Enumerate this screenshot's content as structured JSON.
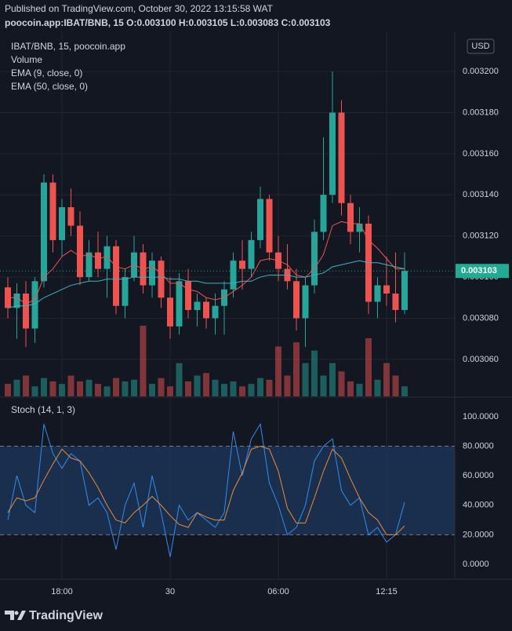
{
  "header": {
    "published": "Published on TradingView.com, October 30, 2022 13:15:58 WAT",
    "symbol_line": "poocoin.app:IBAT/BNB, 15 O:0.003100 H:0.003105 L:0.003083 C:0.003103"
  },
  "chart_data": [
    {
      "type": "candlestick",
      "title": "IBAT/BNB, 15, poocoin.app",
      "currency": "USD",
      "up_color": "#26a69a",
      "down_color": "#ef5350",
      "grid": true,
      "categories": [
        null,
        null,
        null,
        null,
        null,
        null,
        "18:00",
        null,
        null,
        null,
        null,
        null,
        null,
        null,
        null,
        null,
        null,
        null,
        "30",
        null,
        null,
        null,
        null,
        null,
        null,
        null,
        null,
        null,
        null,
        null,
        "06:00",
        null,
        null,
        null,
        null,
        null,
        null,
        null,
        null,
        null,
        null,
        null,
        "12:15",
        null,
        null
      ],
      "ohlc": [
        [
          0.003095,
          0.0031,
          0.00308,
          0.003085
        ],
        [
          0.003085,
          0.003097,
          0.00307,
          0.003092
        ],
        [
          0.003092,
          0.003098,
          0.003066,
          0.003075
        ],
        [
          0.003075,
          0.0031,
          0.003068,
          0.003098
        ],
        [
          0.003098,
          0.00315,
          0.003095,
          0.003146
        ],
        [
          0.003146,
          0.00315,
          0.003112,
          0.003118
        ],
        [
          0.003118,
          0.003138,
          0.00311,
          0.003134
        ],
        [
          0.003134,
          0.003143,
          0.00312,
          0.003125
        ],
        [
          0.003125,
          0.003132,
          0.003096,
          0.0031
        ],
        [
          0.0031,
          0.003118,
          0.003098,
          0.003112
        ],
        [
          0.003112,
          0.003122,
          0.0031,
          0.003104
        ],
        [
          0.003104,
          0.00312,
          0.00309,
          0.003115
        ],
        [
          0.003115,
          0.003118,
          0.003082,
          0.003086
        ],
        [
          0.003086,
          0.003104,
          0.00308,
          0.0031
        ],
        [
          0.0031,
          0.00312,
          0.003098,
          0.003112
        ],
        [
          0.003112,
          0.003116,
          0.003092,
          0.003096
        ],
        [
          0.003096,
          0.003112,
          0.00309,
          0.003108
        ],
        [
          0.003108,
          0.00311,
          0.003085,
          0.00309
        ],
        [
          0.00309,
          0.0031,
          0.00307,
          0.003076
        ],
        [
          0.003076,
          0.003102,
          0.003072,
          0.003098
        ],
        [
          0.003098,
          0.003104,
          0.00308,
          0.003084
        ],
        [
          0.003084,
          0.003092,
          0.003076,
          0.003088
        ],
        [
          0.003088,
          0.00309,
          0.003075,
          0.00308
        ],
        [
          0.00308,
          0.003092,
          0.003072,
          0.003086
        ],
        [
          0.003086,
          0.003098,
          0.003072,
          0.003094
        ],
        [
          0.003094,
          0.003112,
          0.00309,
          0.003108
        ],
        [
          0.003108,
          0.003118,
          0.003094,
          0.003104
        ],
        [
          0.003104,
          0.003122,
          0.0031,
          0.003118
        ],
        [
          0.003118,
          0.003144,
          0.003114,
          0.003138
        ],
        [
          0.003138,
          0.00314,
          0.003108,
          0.003112
        ],
        [
          0.003112,
          0.00312,
          0.003098,
          0.003104
        ],
        [
          0.003104,
          0.003116,
          0.003094,
          0.003098
        ],
        [
          0.003098,
          0.003104,
          0.003074,
          0.00308
        ],
        [
          0.00308,
          0.0031,
          0.003066,
          0.003096
        ],
        [
          0.003096,
          0.003128,
          0.003092,
          0.003122
        ],
        [
          0.003122,
          0.003168,
          0.003118,
          0.00314
        ],
        [
          0.00314,
          0.0032,
          0.003136,
          0.00318
        ],
        [
          0.00318,
          0.003186,
          0.00313,
          0.003136
        ],
        [
          0.003136,
          0.00314,
          0.003116,
          0.003122
        ],
        [
          0.003122,
          0.003134,
          0.003112,
          0.003126
        ],
        [
          0.003126,
          0.00313,
          0.003082,
          0.003088
        ],
        [
          0.003088,
          0.0031,
          0.00308,
          0.003096
        ],
        [
          0.003096,
          0.00311,
          0.003086,
          0.003092
        ],
        [
          0.003092,
          0.003112,
          0.003078,
          0.003084
        ],
        [
          0.003084,
          0.003112,
          0.003082,
          0.003103
        ]
      ],
      "volume": {
        "name": "Volume",
        "values": [
          15,
          20,
          25,
          12,
          22,
          18,
          15,
          25,
          18,
          20,
          15,
          12,
          22,
          18,
          20,
          85,
          15,
          22,
          12,
          40,
          18,
          25,
          28,
          20,
          15,
          18,
          12,
          15,
          22,
          20,
          60,
          25,
          65,
          40,
          55,
          25,
          40,
          30,
          18,
          15,
          70,
          20,
          40,
          25,
          12
        ]
      },
      "series": [
        {
          "name": "EMA (9, close, 0)",
          "color": "#f05350",
          "values": [
            0.00309,
            0.00309,
            0.003087,
            0.003089,
            0.0031,
            0.003104,
            0.00311,
            0.003113,
            0.00311,
            0.003111,
            0.003109,
            0.00311,
            0.003105,
            0.003104,
            0.003106,
            0.003104,
            0.003105,
            0.003102,
            0.003097,
            0.003097,
            0.003094,
            0.003093,
            0.00309,
            0.003089,
            0.00309,
            0.003093,
            0.003096,
            0.0031,
            0.003108,
            0.003109,
            0.003108,
            0.003106,
            0.003101,
            0.0031,
            0.003104,
            0.003111,
            0.003125,
            0.003127,
            0.003126,
            0.003126,
            0.003118,
            0.003114,
            0.003109,
            0.003104,
            0.003104
          ]
        },
        {
          "name": "EMA (50, close, 0)",
          "color": "#3bb3c3",
          "values": [
            0.003085,
            0.003086,
            0.003086,
            0.003087,
            0.00309,
            0.003092,
            0.003094,
            0.003096,
            0.003097,
            0.003098,
            0.003098,
            0.003099,
            0.003099,
            0.003099,
            0.0031,
            0.0031,
            0.0031,
            0.0031,
            0.003099,
            0.003099,
            0.003098,
            0.003098,
            0.003097,
            0.003097,
            0.003097,
            0.003097,
            0.003098,
            0.003098,
            0.0031,
            0.003101,
            0.003101,
            0.003101,
            0.0031,
            0.0031,
            0.003101,
            0.003102,
            0.003105,
            0.003106,
            0.003107,
            0.003108,
            0.003107,
            0.003107,
            0.003106,
            0.003105,
            0.003104
          ]
        }
      ],
      "price_label": {
        "value": 0.003103,
        "label": "0.003103"
      },
      "ylim": [
        0.003042,
        0.0032176
      ],
      "yticks": [
        {
          "value": 0.00306,
          "label": "0.003060"
        },
        {
          "value": 0.00308,
          "label": "0.003080"
        },
        {
          "value": 0.0031,
          "label": "0.003100"
        },
        {
          "value": 0.00312,
          "label": "0.003120"
        },
        {
          "value": 0.00314,
          "label": "0.003140"
        },
        {
          "value": 0.00316,
          "label": "0.003160"
        },
        {
          "value": 0.00318,
          "label": "0.003180"
        },
        {
          "value": 0.0032,
          "label": "0.003200"
        }
      ]
    },
    {
      "type": "stoch",
      "title": "Stoch (14, 1, 3)",
      "bands": [
        20,
        80
      ],
      "band_color": "#1e3a5f",
      "series": [
        {
          "color": "#2f8ef0",
          "values": [
            30,
            60,
            40,
            35,
            95,
            75,
            65,
            75,
            70,
            40,
            45,
            35,
            10,
            40,
            55,
            25,
            60,
            35,
            5,
            40,
            30,
            35,
            30,
            25,
            35,
            90,
            60,
            85,
            95,
            55,
            40,
            20,
            25,
            40,
            70,
            80,
            85,
            50,
            40,
            45,
            20,
            25,
            15,
            20,
            42
          ]
        },
        {
          "color": "#f08a30",
          "values": [
            35,
            45,
            43,
            45,
            57,
            68,
            78,
            72,
            70,
            62,
            52,
            40,
            30,
            28,
            35,
            40,
            46,
            40,
            33,
            27,
            25,
            35,
            32,
            30,
            30,
            50,
            62,
            78,
            80,
            78,
            63,
            38,
            28,
            28,
            45,
            63,
            78,
            72,
            58,
            45,
            35,
            30,
            20,
            20,
            26
          ]
        }
      ],
      "ylim": [
        -10.1,
        112.2
      ],
      "yticks": [
        {
          "value": 0,
          "label": "0.0000"
        },
        {
          "value": 20,
          "label": "20.0000"
        },
        {
          "value": 40,
          "label": "40.0000"
        },
        {
          "value": 60,
          "label": "60.0000"
        },
        {
          "value": 80,
          "label": "80.0000"
        },
        {
          "value": 100,
          "label": "100.0000"
        }
      ]
    }
  ],
  "footer": {
    "brand": "TradingView"
  }
}
